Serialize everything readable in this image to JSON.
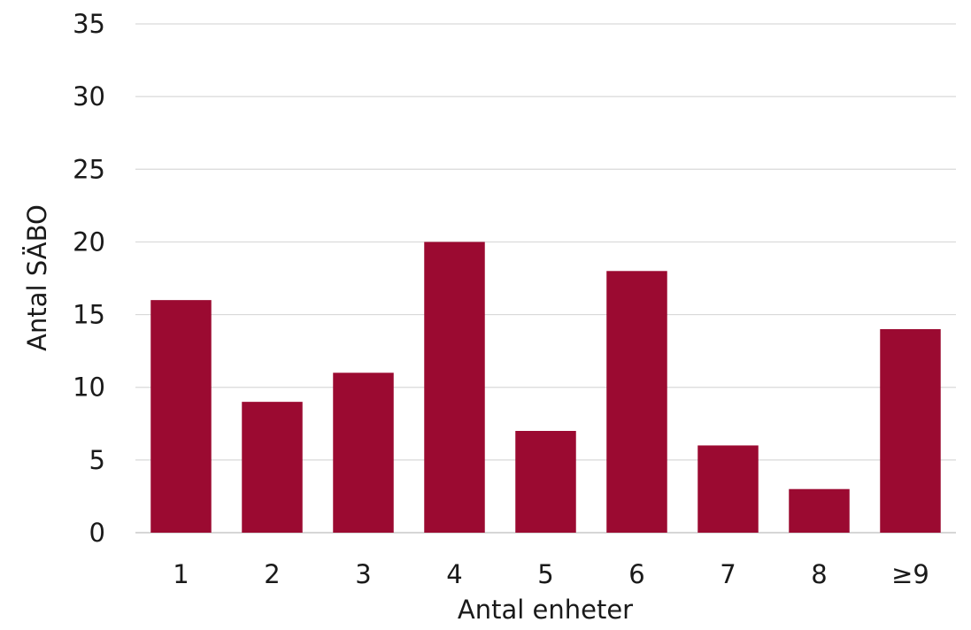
{
  "chart_data": {
    "type": "bar",
    "categories": [
      "1",
      "2",
      "3",
      "4",
      "5",
      "6",
      "7",
      "8",
      "≥9"
    ],
    "values": [
      16,
      9,
      11,
      20,
      7,
      18,
      6,
      3,
      14
    ],
    "xlabel": "Antal enheter",
    "ylabel": "Antal SÄBO",
    "ylim": [
      0,
      35
    ],
    "yticks": [
      0,
      5,
      10,
      15,
      20,
      25,
      30,
      35
    ],
    "grid": true,
    "legend": "none",
    "bar_color": "#9b0a31"
  }
}
